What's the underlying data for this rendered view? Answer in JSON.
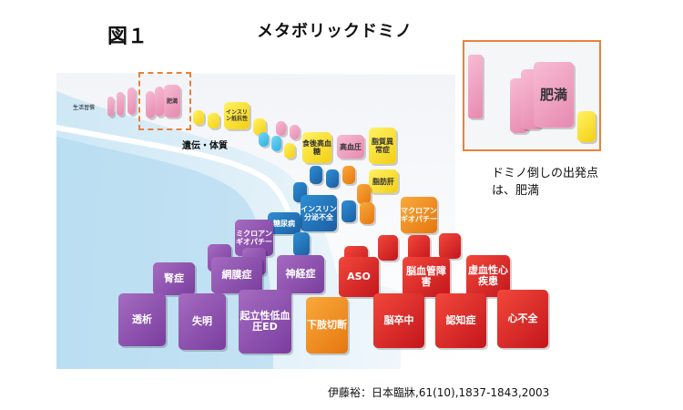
{
  "figure_label": "図１",
  "title": "メタボリックドミノ",
  "caption": "ドミノ倒しの出発点は、肥満",
  "citation": "伊藤裕：日本臨牀,61(10),1837-1843,2003",
  "top_labels": {
    "lifestyle": "生活習慣",
    "genetics": "遺伝・体質"
  },
  "dominoes": {
    "obesity": "肥満",
    "insulin_resistance": "インスリン抵抗性",
    "postprandial_hyperglycemia": "食後高血糖",
    "hypertension": "高血圧",
    "dyslipidemia": "脂質異常症",
    "fatty_liver": "脂肪肝",
    "insulin_secretion": "インスリン分泌不全",
    "diabetes": "糖尿病",
    "macroangiopathy": "マクロアンギオパチー",
    "microangiopathy": "ミクロアンギオパチー",
    "nephropathy": "腎症",
    "retinopathy": "網膜症",
    "neuropathy": "神経症",
    "aso": "ASO",
    "cerebrovascular": "脳血管障害",
    "ischemic_heart": "虚血性心疾患",
    "dialysis": "透析",
    "blindness": "失明",
    "orthostatic_ed": "起立性低血圧ED",
    "amputation": "下肢切断",
    "stroke": "脳卒中",
    "dementia": "認知症",
    "heart_failure": "心不全"
  },
  "inset_label": "肥満",
  "colors": {
    "highlight": "#e8823a",
    "purple": "#7a3d9e",
    "red": "#c4161c",
    "orange": "#e5770f",
    "blue": "#1b5fa3",
    "pink": "#e789b0",
    "yellow": "#f3cf12",
    "cyan": "#2ab0e4"
  }
}
